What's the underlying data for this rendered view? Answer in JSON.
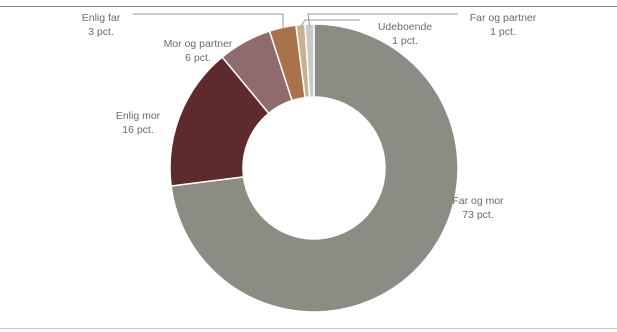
{
  "chart_data": {
    "type": "pie",
    "donut": true,
    "slices": [
      {
        "name": "Far og mor",
        "value": 73,
        "value_label": "73 pct.",
        "color": "#8c8c84"
      },
      {
        "name": "Enlig mor",
        "value": 16,
        "value_label": "16 pct.",
        "color": "#5e2a2c"
      },
      {
        "name": "Mor og partner",
        "value": 6,
        "value_label": "6 pct.",
        "color": "#8f6b6d"
      },
      {
        "name": "Enlig far",
        "value": 3,
        "value_label": "3 pct.",
        "color": "#a8734a"
      },
      {
        "name": "Udeboende",
        "value": 1,
        "value_label": "1 pct.",
        "color": "#c7b28d"
      },
      {
        "name": "Far og partner",
        "value": 1,
        "value_label": "1 pct.",
        "color": "#c9c9c9"
      }
    ]
  }
}
